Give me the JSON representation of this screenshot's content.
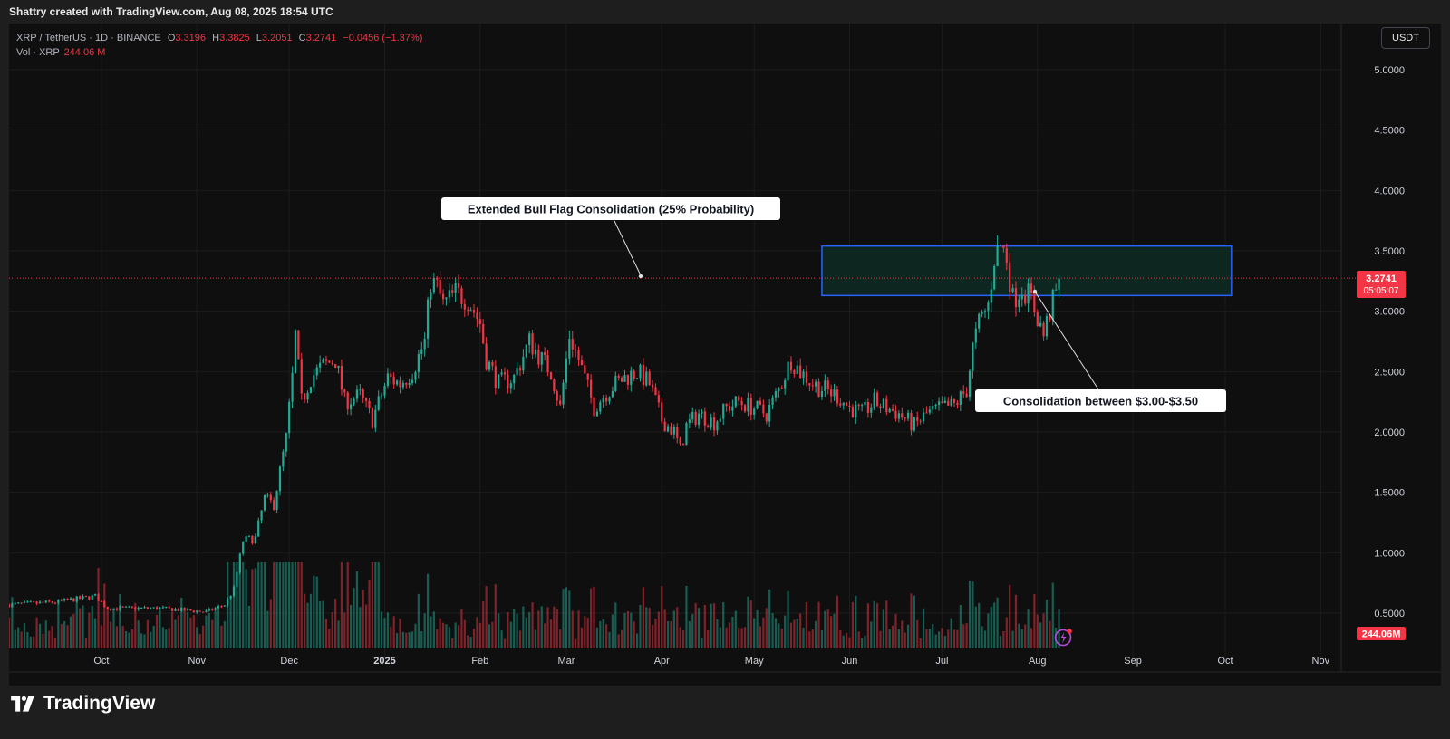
{
  "header": {
    "attribution": "Shattry created with TradingView.com, Aug 08, 2025 18:54 UTC"
  },
  "legend": {
    "symbol": "XRP / TetherUS · 1D · BINANCE",
    "o_label": "O",
    "o_value": "3.3196",
    "h_label": "H",
    "h_value": "3.3825",
    "l_label": "L",
    "l_value": "3.2051",
    "c_label": "C",
    "c_value": "3.2741",
    "change": "−0.0456 (−1.37%)",
    "vol_label": "Vol · XRP",
    "vol_value": "244.06 M"
  },
  "currency_button": "USDT",
  "price_tag": {
    "price": "3.2741",
    "countdown": "05:05:07"
  },
  "volume_tag": "244.06M",
  "annotations": {
    "top": "Extended Bull Flag Consolidation (25% Probability)",
    "bottom": "Consolidation between $3.00-$3.50"
  },
  "branding": "TradingView",
  "colors": {
    "up": "#22ab94",
    "down": "#f23645",
    "zone_border": "#2962ff",
    "zone_fill": "#0d2a22",
    "background": "#0f0f0f"
  },
  "chart_data": {
    "type": "candlestick",
    "symbol": "XRP / TetherUS",
    "interval": "1D",
    "ylim": [
      0.3,
      5.3
    ],
    "y_ticks": [
      "5.0000",
      "4.5000",
      "4.0000",
      "3.5000",
      "3.0000",
      "2.5000",
      "2.0000",
      "1.5000",
      "1.0000",
      "0.5000"
    ],
    "x_ticks": [
      "Oct",
      "Nov",
      "Dec",
      "2025",
      "Feb",
      "Mar",
      "Apr",
      "May",
      "Jun",
      "Jul",
      "Aug",
      "Sep",
      "Oct",
      "Nov"
    ],
    "last_price": 3.2741,
    "consolidation_zone": {
      "low": 3.13,
      "high": 3.54,
      "from": "2025-05-23",
      "to": "2025-10-03"
    },
    "close_series": [
      [
        "2024-09-01",
        0.57
      ],
      [
        "2024-09-16",
        0.59
      ],
      [
        "2024-09-29",
        0.64
      ],
      [
        "2024-10-03",
        0.54
      ],
      [
        "2024-10-20",
        0.54
      ],
      [
        "2024-11-04",
        0.51
      ],
      [
        "2024-11-10",
        0.57
      ],
      [
        "2024-11-13",
        0.7
      ],
      [
        "2024-11-16",
        1.1
      ],
      [
        "2024-11-20",
        1.12
      ],
      [
        "2024-11-23",
        1.45
      ],
      [
        "2024-11-26",
        1.4
      ],
      [
        "2024-11-30",
        1.95
      ],
      [
        "2024-12-02",
        2.45
      ],
      [
        "2024-12-03",
        2.8
      ],
      [
        "2024-12-05",
        2.25
      ],
      [
        "2024-12-08",
        2.45
      ],
      [
        "2024-12-12",
        2.55
      ],
      [
        "2024-12-16",
        2.6
      ],
      [
        "2024-12-19",
        2.25
      ],
      [
        "2024-12-24",
        2.3
      ],
      [
        "2024-12-28",
        2.1
      ],
      [
        "2025-01-02",
        2.45
      ],
      [
        "2025-01-06",
        2.4
      ],
      [
        "2025-01-10",
        2.5
      ],
      [
        "2025-01-14",
        2.75
      ],
      [
        "2025-01-16",
        3.25
      ],
      [
        "2025-01-18",
        3.2
      ],
      [
        "2025-01-20",
        3.05
      ],
      [
        "2025-01-24",
        3.15
      ],
      [
        "2025-01-28",
        3.1
      ],
      [
        "2025-02-01",
        2.9
      ],
      [
        "2025-02-03",
        2.6
      ],
      [
        "2025-02-07",
        2.4
      ],
      [
        "2025-02-12",
        2.45
      ],
      [
        "2025-02-17",
        2.75
      ],
      [
        "2025-02-21",
        2.6
      ],
      [
        "2025-02-24",
        2.5
      ],
      [
        "2025-02-27",
        2.2
      ],
      [
        "2025-03-02",
        2.8
      ],
      [
        "2025-03-05",
        2.6
      ],
      [
        "2025-03-10",
        2.2
      ],
      [
        "2025-03-13",
        2.3
      ],
      [
        "2025-03-17",
        2.4
      ],
      [
        "2025-03-20",
        2.45
      ],
      [
        "2025-03-24",
        2.5
      ],
      [
        "2025-03-28",
        2.4
      ],
      [
        "2025-04-01",
        2.1
      ],
      [
        "2025-04-05",
        2.0
      ],
      [
        "2025-04-07",
        1.85
      ],
      [
        "2025-04-09",
        2.05
      ],
      [
        "2025-04-13",
        2.15
      ],
      [
        "2025-04-18",
        2.08
      ],
      [
        "2025-04-22",
        2.2
      ],
      [
        "2025-04-26",
        2.25
      ],
      [
        "2025-05-01",
        2.2
      ],
      [
        "2025-05-05",
        2.15
      ],
      [
        "2025-05-09",
        2.35
      ],
      [
        "2025-05-13",
        2.6
      ],
      [
        "2025-05-16",
        2.5
      ],
      [
        "2025-05-20",
        2.4
      ],
      [
        "2025-05-24",
        2.35
      ],
      [
        "2025-05-28",
        2.3
      ],
      [
        "2025-06-01",
        2.2
      ],
      [
        "2025-06-05",
        2.15
      ],
      [
        "2025-06-09",
        2.25
      ],
      [
        "2025-06-13",
        2.2
      ],
      [
        "2025-06-17",
        2.15
      ],
      [
        "2025-06-22",
        2.05
      ],
      [
        "2025-06-26",
        2.15
      ],
      [
        "2025-07-01",
        2.2
      ],
      [
        "2025-07-05",
        2.22
      ],
      [
        "2025-07-09",
        2.35
      ],
      [
        "2025-07-11",
        2.7
      ],
      [
        "2025-07-13",
        2.9
      ],
      [
        "2025-07-16",
        3.05
      ],
      [
        "2025-07-18",
        3.45
      ],
      [
        "2025-07-20",
        3.55
      ],
      [
        "2025-07-22",
        3.45
      ],
      [
        "2025-07-24",
        3.1
      ],
      [
        "2025-07-27",
        3.2
      ],
      [
        "2025-07-30",
        3.1
      ],
      [
        "2025-08-01",
        2.95
      ],
      [
        "2025-08-03",
        2.8
      ],
      [
        "2025-08-05",
        3.0
      ],
      [
        "2025-08-07",
        3.15
      ],
      [
        "2025-08-08",
        3.2741
      ]
    ]
  }
}
